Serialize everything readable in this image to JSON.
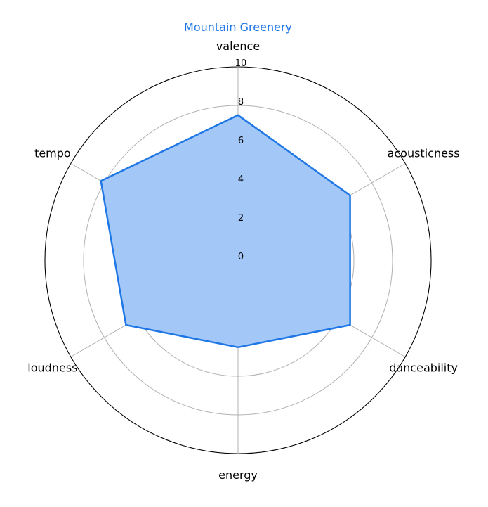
{
  "chart_data": {
    "type": "radar",
    "title": "Mountain Greenery",
    "axes": [
      "valence",
      "acousticness",
      "danceability",
      "energy",
      "loudness",
      "tempo"
    ],
    "series": [
      {
        "values": [
          7.5,
          6.7,
          6.7,
          4.5,
          6.7,
          8.2
        ]
      }
    ],
    "rlim": [
      0,
      10
    ],
    "ticks": [
      "0",
      "2",
      "4",
      "6",
      "8",
      "10"
    ],
    "grid": true,
    "colors": {
      "line": "#1f77e6",
      "fill": "#a3c8f8",
      "grid": "#b0b0b0",
      "outer": "#000000",
      "title": "#1f77e6"
    }
  }
}
